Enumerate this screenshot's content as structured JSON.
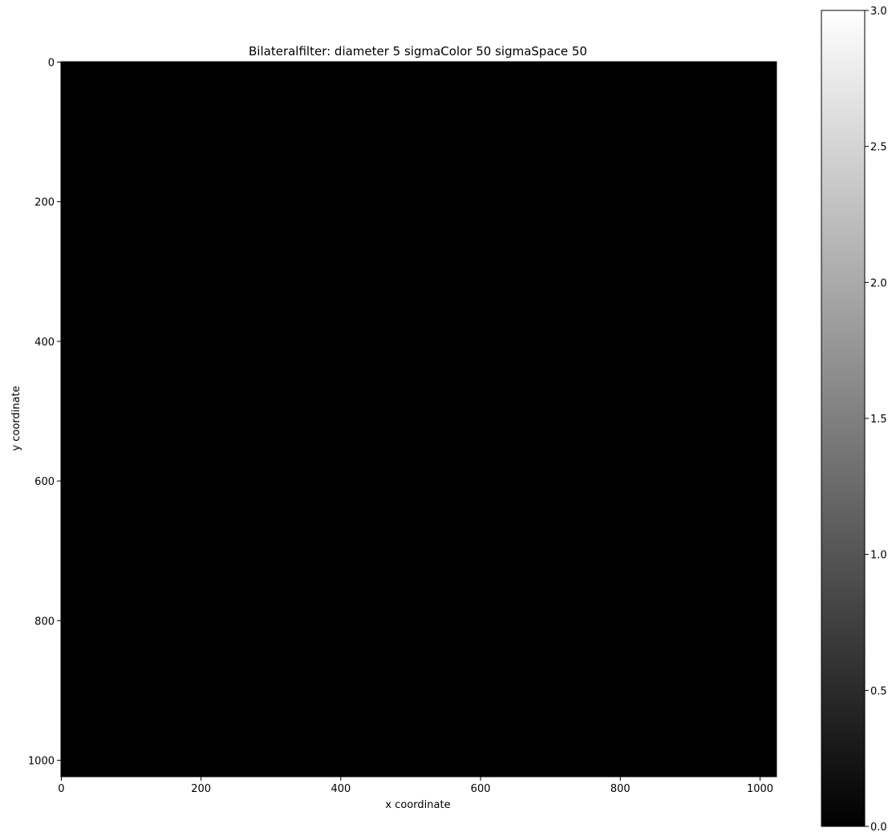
{
  "chart_data": {
    "type": "image",
    "title": "Bilateralfilter: diameter 5 sigmaColor 50 sigmaSpace 50",
    "xlabel": "x coordinate",
    "ylabel": "y coordinate",
    "xlim": [
      -0.5,
      1023.5
    ],
    "ylim": [
      1023.5,
      -0.5
    ],
    "xticks": [
      0,
      200,
      400,
      600,
      800,
      1000
    ],
    "yticks": [
      0,
      200,
      400,
      600,
      800,
      1000
    ],
    "colormap": "gray",
    "colorbar": {
      "clim": [
        0,
        3
      ],
      "ticks": [
        {
          "value": 0,
          "label": "0.0"
        },
        0.5,
        {
          "value": 1,
          "label": "1.0"
        },
        1.5,
        {
          "value": 2,
          "label": "2.0"
        },
        2.5,
        {
          "value": 3,
          "label": "3.0"
        }
      ]
    }
  }
}
